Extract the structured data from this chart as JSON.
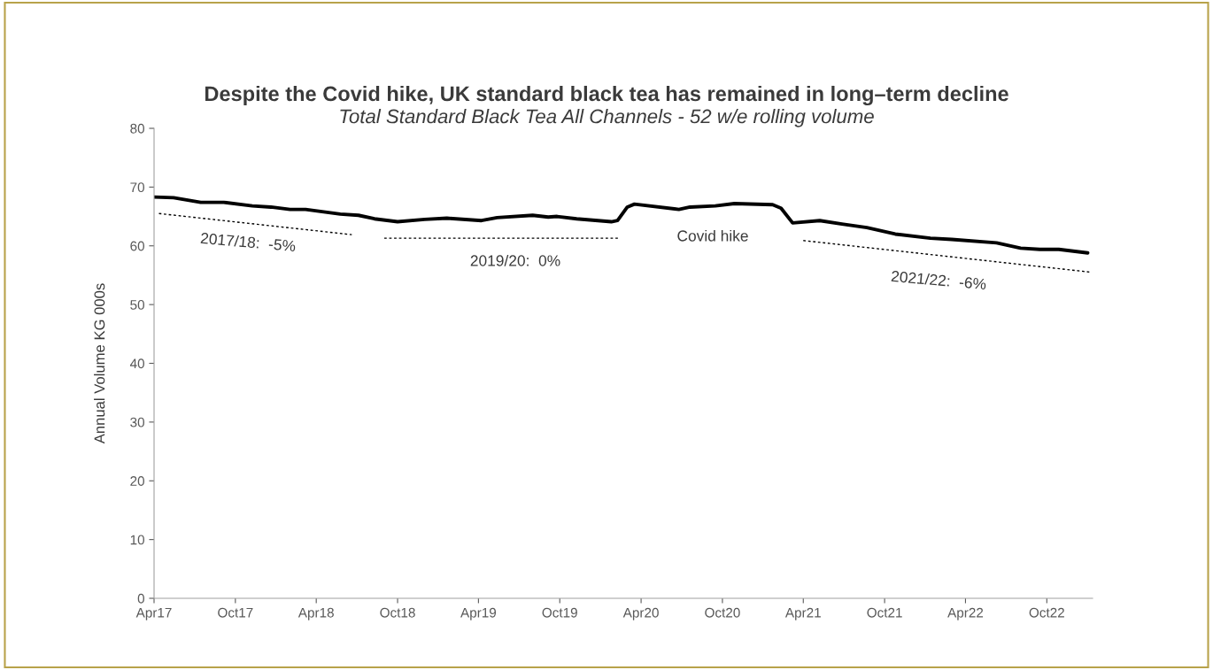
{
  "chart_data": {
    "type": "line",
    "title": "Despite the Covid hike, UK standard black tea has remained in long–term decline",
    "subtitle": "Total Standard Black Tea All Channels - 52 w/e rolling volume",
    "ylabel": "Annual Volume KG 000s",
    "series": [
      {
        "color": "#000000",
        "line_style": "solid",
        "x": [
          "2017-04-01",
          "2017-05-15",
          "2017-07-15",
          "2017-09-05",
          "2017-11-08",
          "2017-12-20",
          "2018-02-01",
          "2018-03-08",
          "2018-05-25",
          "2018-07-05",
          "2018-08-10",
          "2018-10-01",
          "2018-12-01",
          "2019-01-20",
          "2019-04-08",
          "2019-05-13",
          "2019-08-01",
          "2019-09-05",
          "2019-09-25",
          "2019-11-08",
          "2020-01-25",
          "2020-02-08",
          "2020-03-01",
          "2020-03-17",
          "2020-06-25",
          "2020-07-20",
          "2020-09-15",
          "2020-10-28",
          "2021-01-22",
          "2021-02-10",
          "2021-03-08",
          "2021-05-08",
          "2021-06-27",
          "2021-08-22",
          "2021-10-25",
          "2022-01-12",
          "2022-03-01",
          "2022-06-10",
          "2022-08-03",
          "2022-09-15",
          "2022-10-28",
          "2023-01-01"
        ],
        "values": [
          68.3,
          68.2,
          67.4,
          67.4,
          66.8,
          66.6,
          66.2,
          66.2,
          65.4,
          65.2,
          64.6,
          64.1,
          64.5,
          64.7,
          64.3,
          64.8,
          65.2,
          64.9,
          65.0,
          64.6,
          64.1,
          64.3,
          66.6,
          67.1,
          66.2,
          66.6,
          66.8,
          67.2,
          67.0,
          66.4,
          63.9,
          64.3,
          63.7,
          63.1,
          62.0,
          61.3,
          61.1,
          60.5,
          59.6,
          59.4,
          59.4,
          58.8
        ]
      },
      {
        "type": "line",
        "color": "#000000",
        "line_style": "dotted",
        "x": [
          "2017-04-12",
          "2018-06-20"
        ],
        "values": [
          65.5,
          61.9
        ]
      },
      {
        "type": "line",
        "color": "#000000",
        "line_style": "dotted",
        "x": [
          "2018-09-01",
          "2020-02-12"
        ],
        "values": [
          61.3,
          61.3
        ]
      },
      {
        "type": "line",
        "color": "#000000",
        "line_style": "dotted",
        "x": [
          "2021-04-01",
          "2023-01-10"
        ],
        "values": [
          60.9,
          55.5
        ]
      }
    ],
    "annotations": [
      "2017/18:  -5%",
      "2019/20:  0%",
      "Covid hike",
      "2021/22:  -6%"
    ],
    "xlim": [
      "2017-04-01",
      "2023-01-12"
    ],
    "xticks": [
      {
        "value": "2017-04-01",
        "label": "Apr17"
      },
      {
        "value": "2017-10-01",
        "label": "Oct17"
      },
      {
        "value": "2018-04-01",
        "label": "Apr18"
      },
      {
        "value": "2018-10-01",
        "label": "Oct18"
      },
      {
        "value": "2019-04-01",
        "label": "Apr19"
      },
      {
        "value": "2019-10-01",
        "label": "Oct19"
      },
      {
        "value": "2020-04-01",
        "label": "Apr20"
      },
      {
        "value": "2020-10-01",
        "label": "Oct20"
      },
      {
        "value": "2021-04-01",
        "label": "Apr21"
      },
      {
        "value": "2021-10-01",
        "label": "Oct21"
      },
      {
        "value": "2022-04-01",
        "label": "Apr22"
      },
      {
        "value": "2022-10-01",
        "label": "Oct22"
      }
    ],
    "ylim": [
      0,
      80
    ],
    "yticks": [
      0,
      10,
      20,
      30,
      40,
      50,
      60,
      70,
      80
    ],
    "grid": false,
    "marker": "none"
  }
}
